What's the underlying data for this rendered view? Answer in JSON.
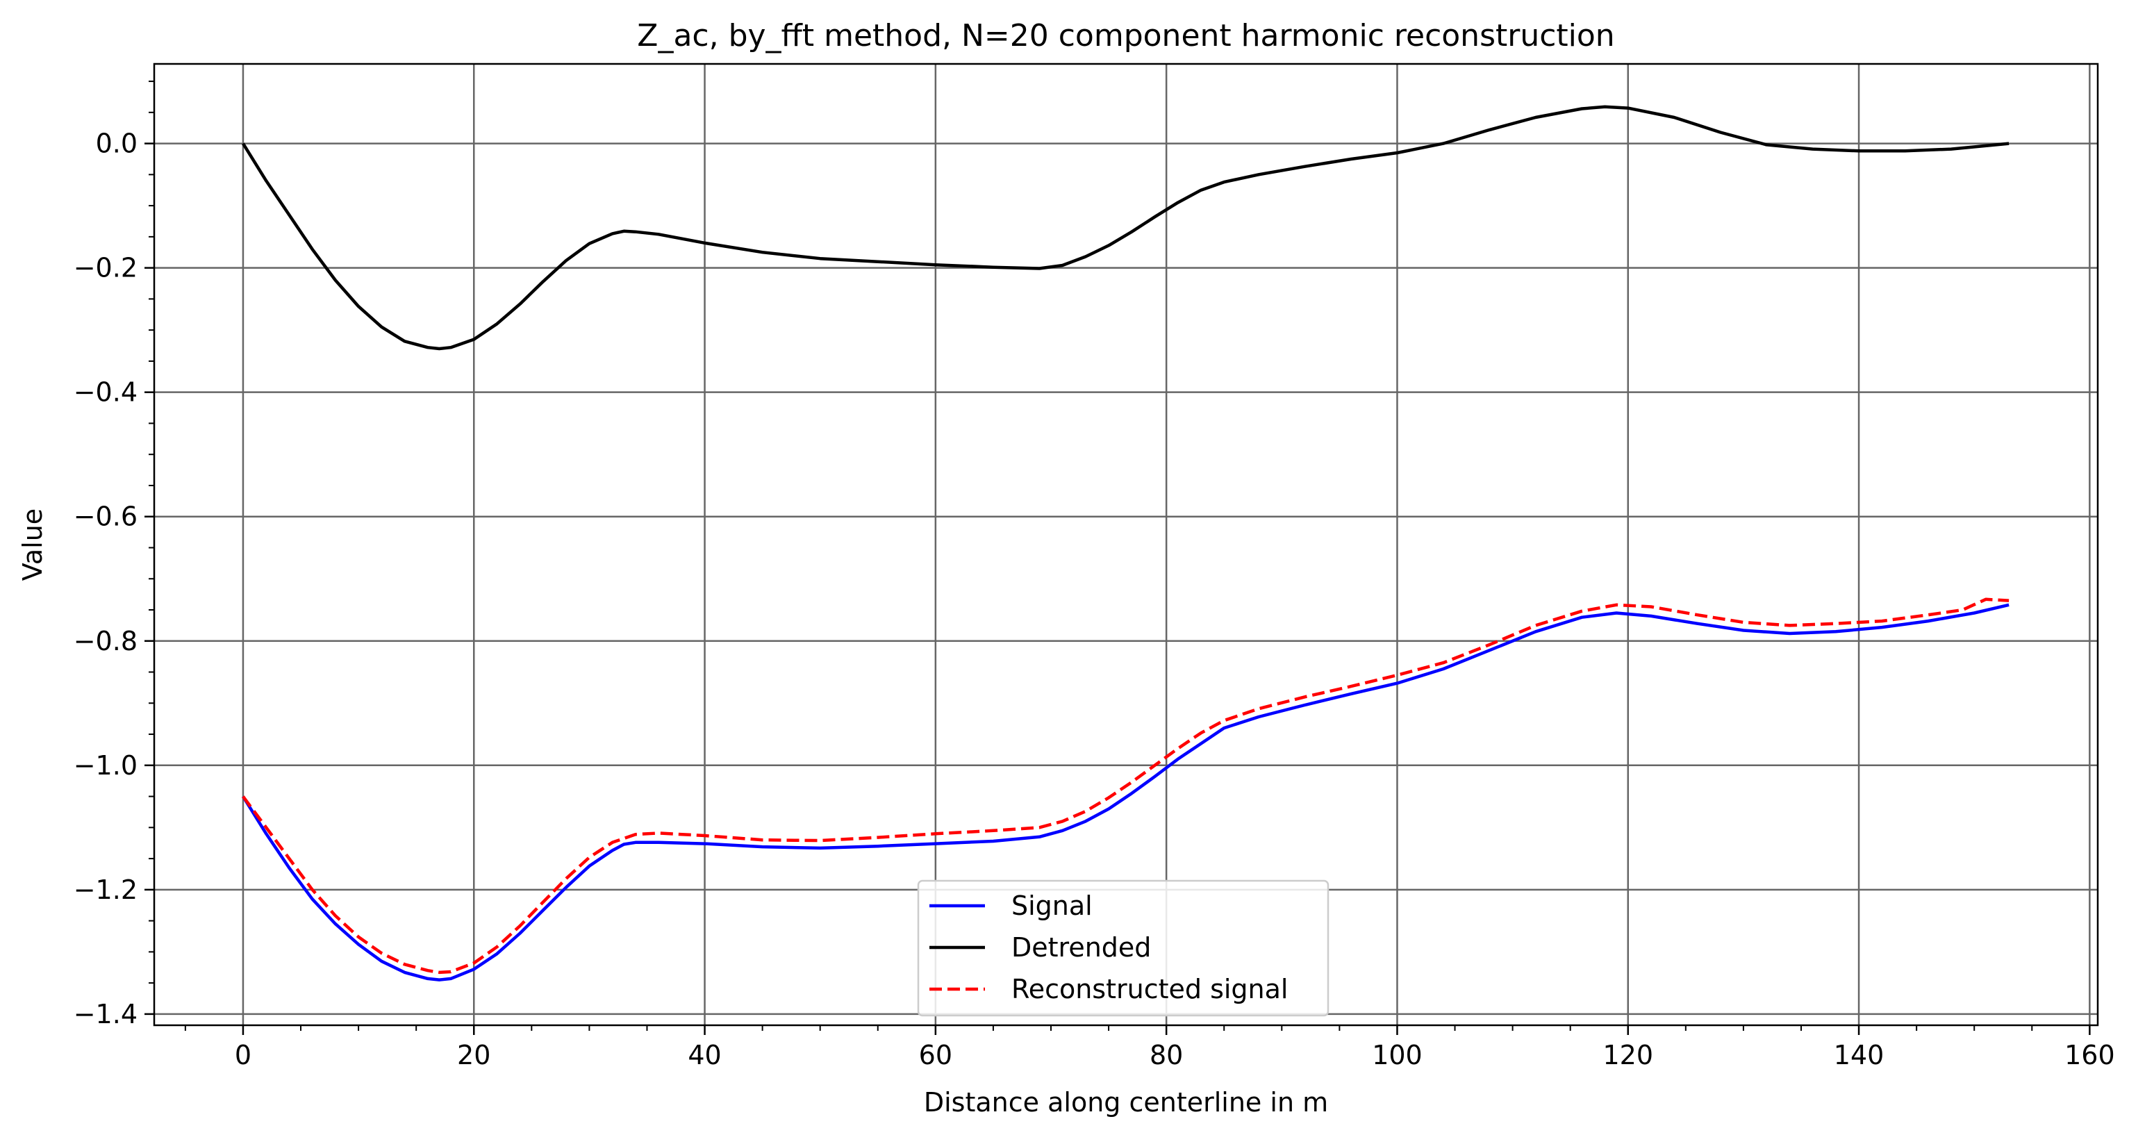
{
  "chart_data": {
    "type": "line",
    "title": "Z_ac, by_fft method, N=20 component harmonic reconstruction",
    "xlabel": "Distance along centerline in m",
    "ylabel": "Value",
    "xlim": [
      -7.7,
      160.7
    ],
    "ylim": [
      -1.418,
      0.128
    ],
    "xticks": [
      0,
      20,
      40,
      60,
      80,
      100,
      120,
      140,
      160
    ],
    "xtick_labels": [
      "0",
      "20",
      "40",
      "60",
      "80",
      "100",
      "120",
      "140",
      "160"
    ],
    "yticks": [
      0.0,
      -0.2,
      -0.4,
      -0.6,
      -0.8,
      -1.0,
      -1.2,
      -1.4
    ],
    "ytick_labels": [
      "0.0",
      "−0.2",
      "−0.4",
      "−0.6",
      "−0.8",
      "−1.0",
      "−1.2",
      "−1.4"
    ],
    "grid": true,
    "legend_position": "lower center",
    "series": [
      {
        "name": "Signal",
        "color": "#0000ff",
        "dash": "solid",
        "x": [
          0,
          2,
          4,
          6,
          8,
          10,
          12,
          14,
          16,
          17,
          18,
          20,
          22,
          24,
          26,
          28,
          30,
          32,
          33,
          34,
          36,
          40,
          45,
          50,
          55,
          60,
          65,
          69,
          71,
          73,
          75,
          77,
          79,
          81,
          83,
          85,
          88,
          92,
          96,
          100,
          104,
          108,
          112,
          116,
          119,
          122,
          126,
          130,
          134,
          138,
          142,
          146,
          150,
          153
        ],
        "y": [
          -1.05,
          -1.11,
          -1.165,
          -1.215,
          -1.255,
          -1.288,
          -1.315,
          -1.333,
          -1.343,
          -1.345,
          -1.343,
          -1.328,
          -1.303,
          -1.27,
          -1.233,
          -1.196,
          -1.162,
          -1.137,
          -1.127,
          -1.124,
          -1.124,
          -1.126,
          -1.131,
          -1.133,
          -1.13,
          -1.126,
          -1.122,
          -1.115,
          -1.105,
          -1.09,
          -1.07,
          -1.045,
          -1.018,
          -0.99,
          -0.965,
          -0.94,
          -0.922,
          -0.903,
          -0.885,
          -0.868,
          -0.845,
          -0.815,
          -0.785,
          -0.762,
          -0.755,
          -0.76,
          -0.772,
          -0.783,
          -0.788,
          -0.785,
          -0.778,
          -0.768,
          -0.755,
          -0.742
        ]
      },
      {
        "name": "Detrended",
        "color": "#000000",
        "dash": "solid",
        "x": [
          0,
          2,
          4,
          6,
          8,
          10,
          12,
          14,
          16,
          17,
          18,
          20,
          22,
          24,
          26,
          28,
          30,
          32,
          33,
          34,
          36,
          40,
          45,
          50,
          55,
          60,
          65,
          69,
          71,
          73,
          75,
          77,
          79,
          81,
          83,
          85,
          88,
          92,
          96,
          100,
          104,
          108,
          112,
          116,
          118,
          120,
          124,
          128,
          132,
          136,
          140,
          144,
          148,
          153
        ],
        "y": [
          0.0,
          -0.06,
          -0.115,
          -0.17,
          -0.22,
          -0.262,
          -0.295,
          -0.318,
          -0.328,
          -0.33,
          -0.328,
          -0.315,
          -0.29,
          -0.258,
          -0.222,
          -0.188,
          -0.161,
          -0.145,
          -0.141,
          -0.142,
          -0.146,
          -0.16,
          -0.175,
          -0.185,
          -0.19,
          -0.195,
          -0.199,
          -0.201,
          -0.196,
          -0.182,
          -0.164,
          -0.142,
          -0.118,
          -0.095,
          -0.075,
          -0.062,
          -0.05,
          -0.037,
          -0.025,
          -0.015,
          0.0,
          0.022,
          0.042,
          0.056,
          0.059,
          0.057,
          0.042,
          0.018,
          -0.002,
          -0.009,
          -0.012,
          -0.012,
          -0.009,
          0.0
        ]
      },
      {
        "name": "Reconstructed signal",
        "color": "#ff0000",
        "dash": "dashed",
        "x": [
          0,
          2,
          4,
          6,
          8,
          10,
          12,
          14,
          16,
          17,
          18,
          20,
          22,
          24,
          26,
          28,
          30,
          32,
          34,
          36,
          40,
          45,
          50,
          55,
          60,
          65,
          69,
          71,
          73,
          75,
          77,
          79,
          81,
          83,
          85,
          88,
          92,
          96,
          100,
          104,
          108,
          112,
          116,
          119,
          122,
          126,
          130,
          134,
          138,
          142,
          146,
          149,
          151,
          153
        ],
        "y": [
          -1.05,
          -1.1,
          -1.15,
          -1.2,
          -1.242,
          -1.276,
          -1.302,
          -1.32,
          -1.33,
          -1.333,
          -1.332,
          -1.318,
          -1.292,
          -1.258,
          -1.22,
          -1.182,
          -1.148,
          -1.124,
          -1.111,
          -1.109,
          -1.113,
          -1.12,
          -1.121,
          -1.116,
          -1.11,
          -1.105,
          -1.1,
          -1.09,
          -1.074,
          -1.052,
          -1.027,
          -1.0,
          -0.973,
          -0.948,
          -0.928,
          -0.909,
          -0.89,
          -0.873,
          -0.855,
          -0.835,
          -0.806,
          -0.775,
          -0.752,
          -0.742,
          -0.745,
          -0.758,
          -0.77,
          -0.775,
          -0.772,
          -0.768,
          -0.758,
          -0.75,
          -0.733,
          -0.735
        ]
      }
    ]
  }
}
